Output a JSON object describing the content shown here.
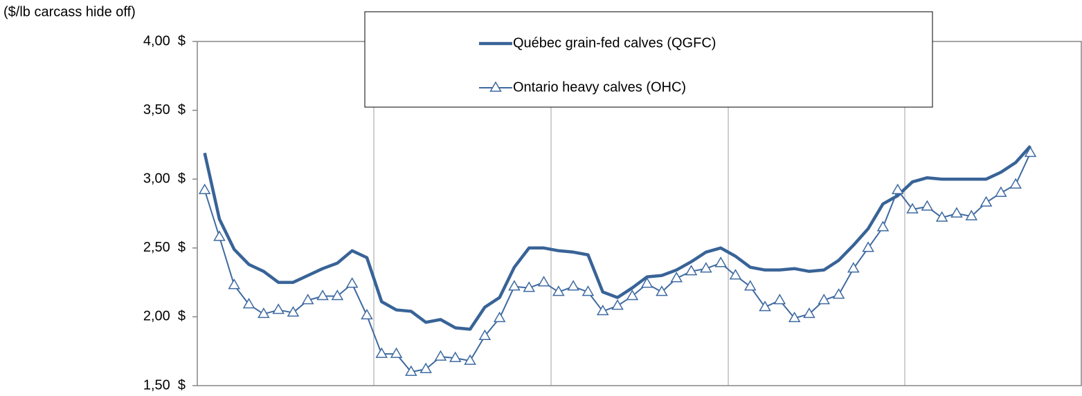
{
  "chart_data": {
    "type": "line",
    "y_label": "($/lb carcass hide off)",
    "categories": [
      null,
      null,
      null,
      null,
      null,
      null,
      null,
      null,
      null,
      null,
      null,
      null,
      null,
      null,
      null,
      null,
      null,
      null,
      null,
      null,
      null,
      null,
      null,
      null,
      null,
      null,
      null,
      null,
      null,
      null,
      null,
      null,
      null,
      null,
      null,
      null,
      null,
      null,
      null,
      null,
      null,
      null,
      null,
      null,
      null,
      null,
      null,
      null,
      null,
      null,
      null,
      null,
      null,
      null,
      null,
      null,
      null
    ],
    "series": [
      {
        "name": "Québec grain-fed calves (QGFC)",
        "color": "#386397",
        "marker": "none",
        "values": [
          3.19,
          2.71,
          2.49,
          2.38,
          2.33,
          2.25,
          2.25,
          2.3,
          2.35,
          2.39,
          2.48,
          2.43,
          2.11,
          2.05,
          2.04,
          1.96,
          1.98,
          1.92,
          1.91,
          2.07,
          2.14,
          2.36,
          2.5,
          2.5,
          2.48,
          2.47,
          2.45,
          2.18,
          2.14,
          2.21,
          2.29,
          2.3,
          2.34,
          2.4,
          2.47,
          2.5,
          2.44,
          2.36,
          2.34,
          2.34,
          2.35,
          2.33,
          2.34,
          2.41,
          2.52,
          2.64,
          2.82,
          2.88,
          2.98,
          3.01,
          3.0,
          3.0,
          3.0,
          3.0,
          3.05,
          3.12,
          3.24
        ]
      },
      {
        "name": "Ontario heavy calves (OHC)",
        "color": "#3d69a0",
        "marker": "triangle",
        "values": [
          2.92,
          2.58,
          2.23,
          2.09,
          2.02,
          2.05,
          2.03,
          2.12,
          2.15,
          2.15,
          2.24,
          2.01,
          1.73,
          1.73,
          1.6,
          1.62,
          1.71,
          1.7,
          1.68,
          1.86,
          1.99,
          2.22,
          2.21,
          2.25,
          2.18,
          2.22,
          2.18,
          2.04,
          2.08,
          2.15,
          2.24,
          2.18,
          2.28,
          2.33,
          2.35,
          2.39,
          2.3,
          2.22,
          2.07,
          2.12,
          1.99,
          2.02,
          2.12,
          2.16,
          2.35,
          2.5,
          2.65,
          2.92,
          2.78,
          2.8,
          2.72,
          2.75,
          2.73,
          2.83,
          2.9,
          2.96,
          3.19
        ]
      }
    ],
    "ylim": [
      1.5,
      4.0
    ],
    "yticks": [
      {
        "value": 1.5,
        "label": "1,50  $"
      },
      {
        "value": 2.0,
        "label": "2,00  $"
      },
      {
        "value": 2.5,
        "label": "2,50  $"
      },
      {
        "value": 3.0,
        "label": "3,00  $"
      },
      {
        "value": 3.5,
        "label": "3,50  $"
      },
      {
        "value": 4.0,
        "label": "4,00  $"
      }
    ],
    "grid": "x",
    "legend": "upper center"
  }
}
